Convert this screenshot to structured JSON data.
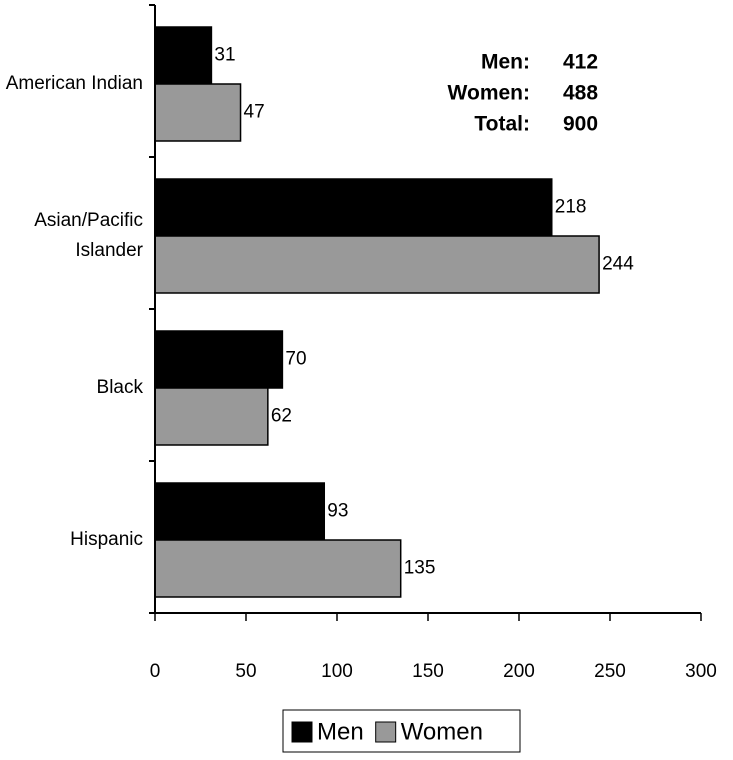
{
  "chart_data": {
    "type": "bar",
    "orientation": "horizontal",
    "categories": [
      "American Indian",
      "Asian/Pacific\nIslander",
      "Black",
      "Hispanic"
    ],
    "series": [
      {
        "name": "Men",
        "color": "#000000",
        "values": [
          31,
          218,
          70,
          93
        ]
      },
      {
        "name": "Women",
        "color": "#999999",
        "values": [
          47,
          244,
          62,
          135
        ]
      }
    ],
    "xlim": [
      0,
      300
    ],
    "xticks": [
      0,
      50,
      100,
      150,
      200,
      250,
      300
    ],
    "annotations": [
      {
        "label": "Men:",
        "value": 412
      },
      {
        "label": "Women:",
        "value": 488
      },
      {
        "label": "Total:",
        "value": 900
      }
    ],
    "legend": "bottom"
  }
}
